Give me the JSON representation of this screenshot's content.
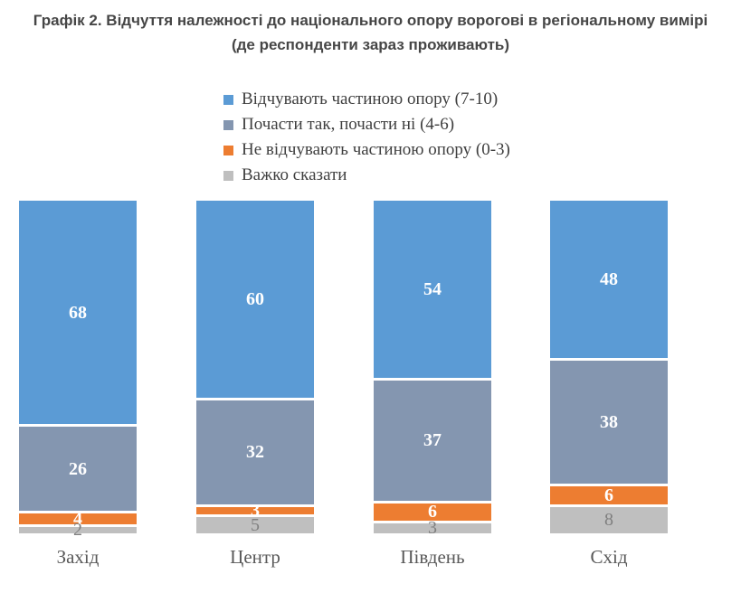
{
  "title": {
    "line1": "Графік 2. Відчуття належності до національного опору ворогові в регіональному вимірі",
    "line2": "(де респонденти зараз проживають)"
  },
  "legend": [
    {
      "label": "Відчувають частиною опору (7-10)",
      "color": "#5B9BD5"
    },
    {
      "label": "Почасти так, почасти ні (4-6)",
      "color": "#8496B0"
    },
    {
      "label": "Не відчувають частиною опору (0-3)",
      "color": "#ED7D31"
    },
    {
      "label": "Важко сказати",
      "color": "#BFBFBF"
    }
  ],
  "chart_data": {
    "type": "bar",
    "stacked": true,
    "percent_stacked": true,
    "orientation": "vertical",
    "title": "Графік 2. Відчуття належності до національного опору ворогові в регіональному вимірі (де респонденти зараз проживають)",
    "categories": [
      "Захід",
      "Центр",
      "Південь",
      "Схід"
    ],
    "series": [
      {
        "name": "Відчувають частиною опору (7-10)",
        "color": "#5B9BD5",
        "values": [
          68,
          60,
          54,
          48
        ],
        "label_color": "#FFFFFF",
        "label_bold": true
      },
      {
        "name": "Почасти так, почасти ні (4-6)",
        "color": "#8496B0",
        "values": [
          26,
          32,
          37,
          38
        ],
        "label_color": "#FFFFFF",
        "label_bold": true
      },
      {
        "name": "Не відчувають частиною опору (0-3)",
        "color": "#ED7D31",
        "values": [
          4,
          3,
          6,
          6
        ],
        "label_color": "#FFFFFF",
        "label_bold": true
      },
      {
        "name": "Важко сказати",
        "color": "#BFBFBF",
        "values": [
          2,
          5,
          3,
          8
        ],
        "label_color": "#7F7F7F",
        "label_bold": false
      }
    ],
    "xlabel": "",
    "ylabel": "",
    "ylim": [
      0,
      100
    ],
    "grid": false,
    "axes_visible": false,
    "data_labels": true,
    "legend_position": "top-center",
    "category_label_color": "#595959"
  }
}
